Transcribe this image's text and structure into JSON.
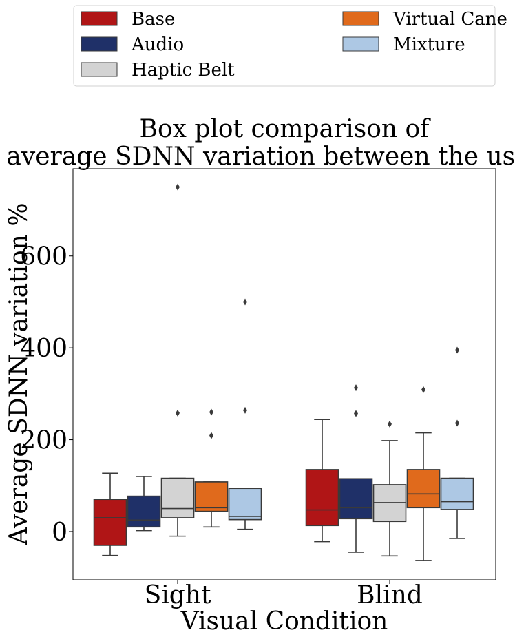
{
  "chart_data": {
    "type": "box",
    "title_lines": [
      "Box plot comparison of",
      "average SDNN variation between the users."
    ],
    "xlabel": "Visual Condition",
    "ylabel": "Average SDNN variation %",
    "categories": [
      "Sight",
      "Blind"
    ],
    "ylim": [
      -105,
      790
    ],
    "yticks": [
      0,
      200,
      400,
      600
    ],
    "legend_position": "top",
    "grid": false,
    "series": [
      {
        "name": "Base",
        "color": "#b01516",
        "boxes": [
          {
            "whisker_low": -52,
            "q1": -30,
            "median": 30,
            "q3": 70,
            "whisker_high": 127,
            "outliers": []
          },
          {
            "whisker_low": -22,
            "q1": 13,
            "median": 47,
            "q3": 135,
            "whisker_high": 244,
            "outliers": []
          }
        ]
      },
      {
        "name": "Audio",
        "color": "#1f3068",
        "boxes": [
          {
            "whisker_low": 2,
            "q1": 10,
            "median": 25,
            "q3": 77,
            "whisker_high": 120,
            "outliers": []
          },
          {
            "whisker_low": -45,
            "q1": 28,
            "median": 52,
            "q3": 115,
            "whisker_high": 115,
            "outliers": [
              257,
              313
            ]
          }
        ]
      },
      {
        "name": "Haptic Belt",
        "color": "#d3d3d3",
        "boxes": [
          {
            "whisker_low": -10,
            "q1": 30,
            "median": 50,
            "q3": 116,
            "whisker_high": 116,
            "outliers": [
              258,
              750
            ]
          },
          {
            "whisker_low": -53,
            "q1": 22,
            "median": 63,
            "q3": 102,
            "whisker_high": 198,
            "outliers": [
              234
            ]
          }
        ]
      },
      {
        "name": "Virtual Cane",
        "color": "#e06a1c",
        "boxes": [
          {
            "whisker_low": 10,
            "q1": 44,
            "median": 52,
            "q3": 108,
            "whisker_high": 108,
            "outliers": [
              209,
              260
            ]
          },
          {
            "whisker_low": -63,
            "q1": 52,
            "median": 82,
            "q3": 135,
            "whisker_high": 215,
            "outliers": [
              309
            ]
          }
        ]
      },
      {
        "name": "Mixture",
        "color": "#adc8e4",
        "boxes": [
          {
            "whisker_low": 5,
            "q1": 26,
            "median": 33,
            "q3": 94,
            "whisker_high": 94,
            "outliers": [
              264,
              500
            ]
          },
          {
            "whisker_low": -15,
            "q1": 48,
            "median": 65,
            "q3": 116,
            "whisker_high": 116,
            "outliers": [
              236,
              395
            ]
          }
        ]
      }
    ]
  }
}
